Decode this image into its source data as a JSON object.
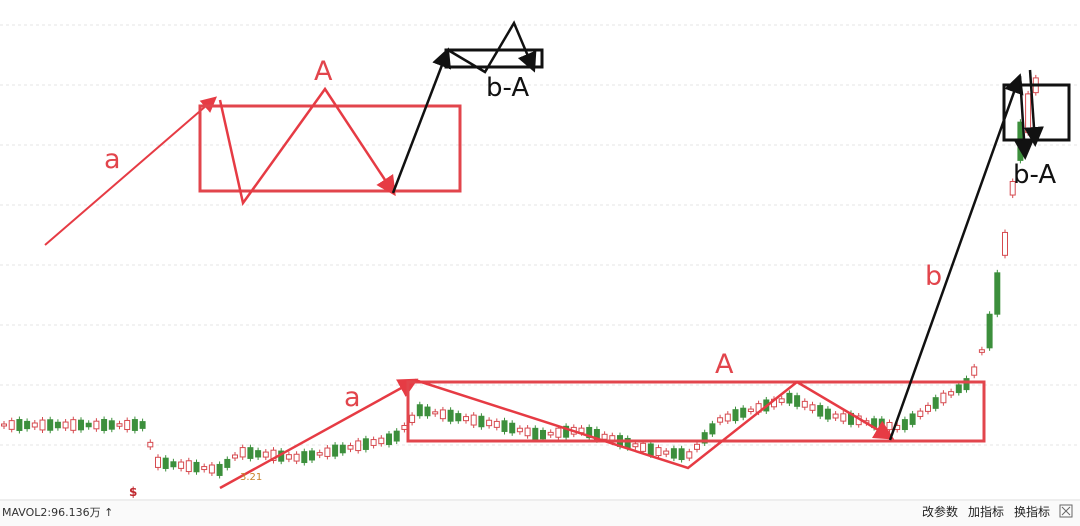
{
  "annotations": {
    "upper_a": "a",
    "upper_A": "A",
    "upper_bA": "b-A",
    "lower_a": "a",
    "lower_A": "A",
    "lower_b": "b",
    "lower_bA": "b-A"
  },
  "chart": {
    "low_price_label": "3.21",
    "marker": "$"
  },
  "status_bar": {
    "indicator": "MAVOL2:96.136万 ↑",
    "buttons": [
      "改参数",
      "加指标",
      "换指标"
    ]
  }
}
